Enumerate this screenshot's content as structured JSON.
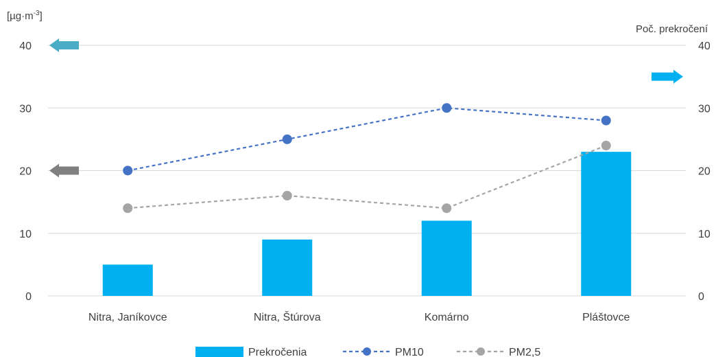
{
  "chart_data": {
    "type": "bar",
    "categories": [
      "Nitra, Janíkovce",
      "Nitra, Štúrova",
      "Komárno",
      "Pláštovce"
    ],
    "y_left": {
      "label_base": "[µg·m",
      "label_sup": "-3",
      "label_end": "]",
      "range": [
        0,
        40
      ],
      "ticks": [
        "0",
        "10",
        "20",
        "30",
        "40"
      ]
    },
    "y_right": {
      "label": "Poč. prekročení",
      "range": [
        0,
        40
      ],
      "ticks": [
        "0",
        "10",
        "20",
        "30",
        "40"
      ]
    },
    "grid": true,
    "legend_position": "bottom",
    "series": [
      {
        "name": "Prekročenia",
        "kind": "bar",
        "axis": "right",
        "color": "#00b0f0",
        "values": [
          5,
          9,
          12,
          23
        ]
      },
      {
        "name": "PM10",
        "kind": "line",
        "style": "dashed",
        "axis": "left",
        "color": "#4472c4",
        "values": [
          20,
          25,
          30,
          28
        ]
      },
      {
        "name": "PM2,5",
        "kind": "line",
        "style": "dashed",
        "axis": "left",
        "color": "#a5a5a5",
        "values": [
          14,
          16,
          14,
          24
        ]
      }
    ],
    "annotations": [
      {
        "kind": "arrow",
        "direction": "left",
        "color": "#4bacc6",
        "level": 40,
        "axis": "left"
      },
      {
        "kind": "arrow",
        "direction": "left",
        "color": "#808080",
        "level": 20,
        "axis": "left"
      },
      {
        "kind": "arrow",
        "direction": "right",
        "color": "#00b0f0",
        "level": 35,
        "axis": "right"
      }
    ]
  }
}
